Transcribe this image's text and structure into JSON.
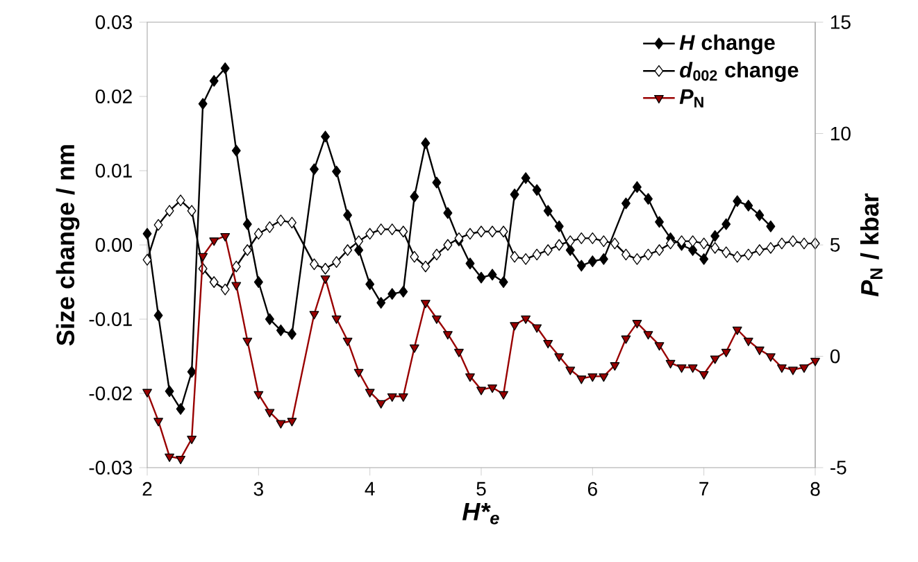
{
  "chart_data": {
    "type": "line",
    "xlabel": "H*$_{e}$",
    "ylabel": "Size change / nm",
    "y2label": "*P*$_{N}$ / kbar",
    "xlim": [
      2,
      8
    ],
    "xticks": [
      2,
      3,
      4,
      5,
      6,
      7,
      8
    ],
    "ylim": [
      -0.03,
      0.03
    ],
    "yticks": [
      -0.03,
      -0.02,
      -0.01,
      {
        "value": 0,
        "label": "0.00"
      },
      0.01,
      0.02,
      0.03
    ],
    "y2lim": [
      -5,
      15
    ],
    "y2ticks": [
      -5,
      0,
      5,
      10,
      15
    ],
    "legend": "top right",
    "grid": false,
    "line_style": "solid",
    "series": [
      {
        "name": "*H* change",
        "color": "#000000",
        "marker": "diamond",
        "x": [
          2.0,
          2.1,
          2.2,
          2.3,
          2.4,
          2.5,
          2.6,
          2.7,
          2.8,
          2.9,
          3.0,
          3.1,
          3.2,
          3.3,
          3.5,
          3.6,
          3.7,
          3.8,
          3.9,
          4.0,
          4.1,
          4.2,
          4.3,
          4.4,
          4.5,
          4.6,
          4.7,
          4.8,
          4.9,
          5.0,
          5.1,
          5.2,
          5.3,
          5.4,
          5.5,
          5.6,
          5.7,
          5.8,
          5.9,
          6.0,
          6.1,
          6.3,
          6.4,
          6.5,
          6.6,
          6.7,
          6.8,
          6.9,
          7.0,
          7.1,
          7.2,
          7.3,
          7.4,
          7.5,
          7.6,
          7.8,
          8.0
        ],
        "values": [
          0.0015,
          -0.0095,
          -0.0197,
          -0.0221,
          -0.0171,
          0.019,
          0.0221,
          0.0238,
          0.0127,
          0.0028,
          -0.005,
          -0.01,
          -0.0115,
          -0.012,
          0.0102,
          0.0146,
          0.0099,
          0.004,
          -0.0007,
          -0.0053,
          -0.0078,
          -0.0066,
          -0.0063,
          0.0065,
          0.0137,
          0.0084,
          0.0043,
          0.0006,
          -0.0025,
          -0.0044,
          -0.004,
          -0.005,
          0.0068,
          0.009,
          0.0074,
          0.0046,
          0.0025,
          -0.0007,
          -0.0028,
          -0.0022,
          -0.0019,
          0.0056,
          0.0078,
          0.0062,
          0.0031,
          0.0009,
          0.0,
          -0.0007,
          -0.0019,
          0.0012,
          0.0028,
          0.0059,
          0.0053,
          0.004,
          0.0025,
          null,
          0.0002
        ]
      },
      {
        "name": "*d*$_{002}$ change",
        "color": "#000000",
        "marker": "diamond",
        "x": [
          2.0,
          2.1,
          2.2,
          2.3,
          2.4,
          2.5,
          2.6,
          2.7,
          2.8,
          2.9,
          3.0,
          3.1,
          3.2,
          3.3,
          3.5,
          3.6,
          3.7,
          3.8,
          3.9,
          4.0,
          4.1,
          4.2,
          4.3,
          4.4,
          4.5,
          4.6,
          4.7,
          4.8,
          4.9,
          5.0,
          5.1,
          5.2,
          5.3,
          5.4,
          5.5,
          5.6,
          5.7,
          5.8,
          5.9,
          6.0,
          6.1,
          6.2,
          6.3,
          6.4,
          6.5,
          6.6,
          6.7,
          6.8,
          6.9,
          7.0,
          7.1,
          7.2,
          7.3,
          7.4,
          7.5,
          7.6,
          7.7,
          7.8,
          7.9,
          8.0
        ],
        "values": [
          -0.002,
          0.0027,
          0.0046,
          0.006,
          0.0046,
          -0.0032,
          -0.005,
          -0.006,
          -0.0029,
          -0.0007,
          0.0015,
          0.0024,
          0.0033,
          0.003,
          -0.0026,
          -0.0032,
          -0.0023,
          -0.0007,
          0.0005,
          0.0015,
          0.0021,
          0.0021,
          0.0018,
          -0.0016,
          -0.0029,
          -0.0013,
          0.0,
          0.0009,
          0.0015,
          0.0018,
          0.0018,
          0.0018,
          -0.0016,
          -0.0019,
          -0.0013,
          -0.0007,
          0.0,
          0.0005,
          0.0009,
          0.0009,
          0.0005,
          0.0002,
          -0.0013,
          -0.0019,
          -0.0013,
          -0.0007,
          0.0002,
          0.0005,
          0.0005,
          0.0002,
          -0.0004,
          -0.001,
          -0.0016,
          -0.0013,
          -0.0007,
          -0.0004,
          0.0002,
          0.0005,
          0.0002,
          0.0002
        ]
      },
      {
        "name": "*P*$_{N}$",
        "color": "#990000",
        "marker": "triangle",
        "axis": "y2",
        "x": [
          2.0,
          2.1,
          2.2,
          2.3,
          2.4,
          2.5,
          2.6,
          2.7,
          2.8,
          2.9,
          3.0,
          3.1,
          3.2,
          3.3,
          3.5,
          3.6,
          3.7,
          3.8,
          3.9,
          4.0,
          4.1,
          4.2,
          4.3,
          4.4,
          4.5,
          4.6,
          4.7,
          4.8,
          4.9,
          5.0,
          5.1,
          5.2,
          5.3,
          5.4,
          5.5,
          5.6,
          5.7,
          5.8,
          5.9,
          6.0,
          6.1,
          6.2,
          6.3,
          6.4,
          6.5,
          6.6,
          6.7,
          6.8,
          6.9,
          7.0,
          7.1,
          7.2,
          7.3,
          7.4,
          7.5,
          7.6,
          7.7,
          7.8,
          7.9,
          8.0
        ],
        "values": [
          -1.6,
          -2.9,
          -4.5,
          -4.6,
          -3.7,
          4.5,
          5.2,
          5.4,
          3.2,
          0.7,
          -1.7,
          -2.5,
          -3.0,
          -2.9,
          1.9,
          3.5,
          1.7,
          0.7,
          -0.7,
          -1.6,
          -2.1,
          -1.8,
          -1.8,
          0.4,
          2.4,
          1.7,
          1.0,
          0.2,
          -0.9,
          -1.5,
          -1.4,
          -1.7,
          1.4,
          1.7,
          1.3,
          0.6,
          0.0,
          -0.6,
          -1.0,
          -0.9,
          -0.9,
          -0.4,
          0.8,
          1.5,
          1.0,
          0.5,
          -0.3,
          -0.5,
          -0.5,
          -0.8,
          -0.1,
          0.2,
          1.2,
          0.7,
          0.3,
          0.0,
          -0.5,
          -0.6,
          -0.5,
          -0.2
        ]
      }
    ]
  }
}
